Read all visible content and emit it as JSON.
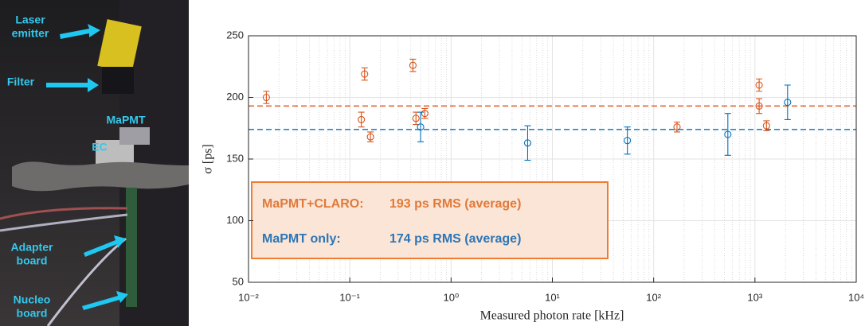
{
  "photo_labels": [
    {
      "lines": [
        "Laser",
        "emitter"
      ]
    },
    {
      "lines": [
        "Filter"
      ]
    },
    {
      "lines": [
        "MaPMT"
      ]
    },
    {
      "lines": [
        "EC"
      ]
    },
    {
      "lines": [
        "Adapter",
        "board"
      ]
    },
    {
      "lines": [
        "Nucleo",
        "board"
      ]
    }
  ],
  "chart_data": {
    "type": "errorbar",
    "x_label": "Measured photon rate [kHz]",
    "y_label": "σ [ps]",
    "xscale": "log",
    "grid": true,
    "minor_grid": true,
    "xlim": [
      0.01,
      10000
    ],
    "xticks": [
      {
        "value": 0.01,
        "label": "10⁻²"
      },
      {
        "value": 0.1,
        "label": "10⁻¹"
      },
      {
        "value": 1,
        "label": "10⁰"
      },
      {
        "value": 10,
        "label": "10¹"
      },
      {
        "value": 100,
        "label": "10²"
      },
      {
        "value": 1000,
        "label": "10³"
      },
      {
        "value": 10000,
        "label": "10⁴"
      }
    ],
    "ylim": [
      50,
      250
    ],
    "yticks": [
      50,
      100,
      150,
      200,
      250
    ],
    "series": [
      {
        "name": "MaPMT+CLARO:",
        "color": "#d95319",
        "label_color": "#e07a3a",
        "x": [
          0.015,
          0.13,
          0.14,
          0.16,
          0.42,
          0.45,
          0.55,
          170,
          1100,
          1100,
          1300
        ],
        "values": [
          200,
          182,
          219,
          168,
          226,
          183,
          187,
          176,
          193,
          210,
          177
        ],
        "errors": [
          5,
          6,
          5,
          4,
          5,
          5,
          4,
          4,
          6,
          5,
          4
        ],
        "average": 193,
        "average_label": "193 ps RMS (average)"
      },
      {
        "name": "MaPMT only:",
        "color": "#0072bd",
        "label_color": "#2e75b6",
        "x": [
          0.5,
          5.7,
          55,
          540,
          2100
        ],
        "values": [
          176,
          163,
          165,
          170,
          196
        ],
        "errors": [
          12,
          14,
          11,
          17,
          14
        ],
        "average": 174,
        "average_label": "174 ps RMS (average)"
      }
    ]
  }
}
